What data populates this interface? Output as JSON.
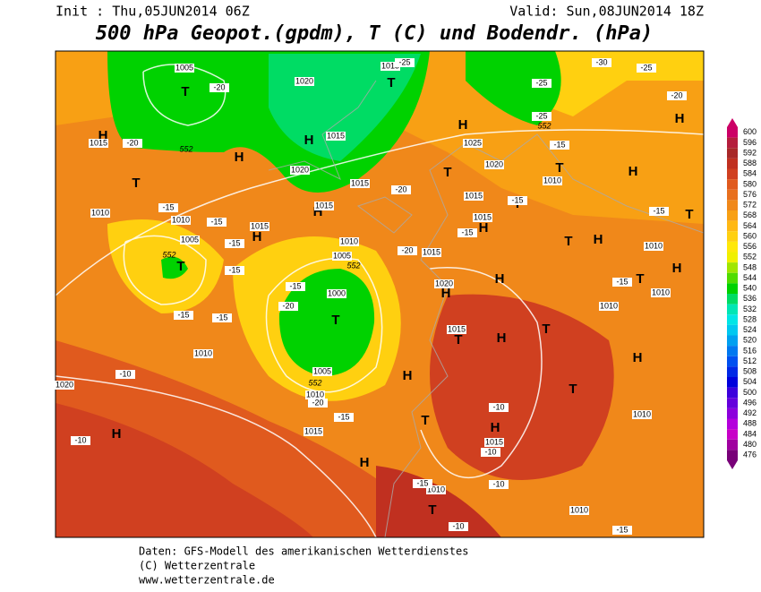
{
  "header": {
    "init": "Init : Thu,05JUN2014 06Z",
    "valid": "Valid: Sun,08JUN2014 18Z",
    "title": "500 hPa Geopot.(gpdm), T (C) und Bodendr. (hPa)"
  },
  "legend": {
    "levels": [
      600,
      596,
      592,
      588,
      584,
      580,
      576,
      572,
      568,
      564,
      560,
      556,
      552,
      548,
      544,
      540,
      536,
      532,
      528,
      524,
      520,
      516,
      512,
      508,
      504,
      500,
      496,
      492,
      488,
      484,
      480,
      476
    ],
    "colors": [
      "#cc0066",
      "#b41e3c",
      "#a82828",
      "#c03020",
      "#d04020",
      "#e05a1e",
      "#e8701e",
      "#f0881a",
      "#f8a014",
      "#ffb814",
      "#ffd010",
      "#ffe80a",
      "#f0f000",
      "#a0e600",
      "#50dc00",
      "#00d200",
      "#00dc64",
      "#00e6b4",
      "#00e6e6",
      "#00c8f0",
      "#00a0f0",
      "#0078f0",
      "#0050f0",
      "#0028e6",
      "#0000dc",
      "#3c00dc",
      "#6400dc",
      "#8c00dc",
      "#b400dc",
      "#c800c8",
      "#a000a0",
      "#780078"
    ]
  },
  "map": {
    "labels": [
      "H",
      "H",
      "H",
      "H",
      "H",
      "H",
      "H",
      "H",
      "H",
      "H",
      "H",
      "H",
      "H",
      "H",
      "H",
      "H",
      "H",
      "H",
      "H",
      "T",
      "T",
      "T",
      "T",
      "T",
      "T",
      "T",
      "T",
      "T",
      "T",
      "T",
      "T",
      "T",
      "T",
      "T",
      "T",
      "1005",
      "1020",
      "1015",
      "1015",
      "1015",
      "1020",
      "1015",
      "1015",
      "1025",
      "1020",
      "1010",
      "1015",
      "1015",
      "1010",
      "1010",
      "1015",
      "1005",
      "1010",
      "1005",
      "1015",
      "1000",
      "1020",
      "1010",
      "1010",
      "1010",
      "1015",
      "1010",
      "1005",
      "1010",
      "1020",
      "1015",
      "1015",
      "1010",
      "1010",
      "1010",
      "-20",
      "-20",
      "-25",
      "-30",
      "-25",
      "-25",
      "-25",
      "-20",
      "-15",
      "-20",
      "-15",
      "-15",
      "-15",
      "-20",
      "-15",
      "-15",
      "-15",
      "-15",
      "-15",
      "-15",
      "-15",
      "-15",
      "-10",
      "-10",
      "-15",
      "-20",
      "-10",
      "-10",
      "-15",
      "-10",
      "-10",
      "-15",
      "-20",
      "552",
      "552",
      "552",
      "552",
      "552"
    ]
  },
  "footer": {
    "lines": [
      "Daten: GFS-Modell des amerikanischen Wetterdienstes",
      "(C) Wetterzentrale",
      "www.wetterzentrale.de"
    ]
  }
}
